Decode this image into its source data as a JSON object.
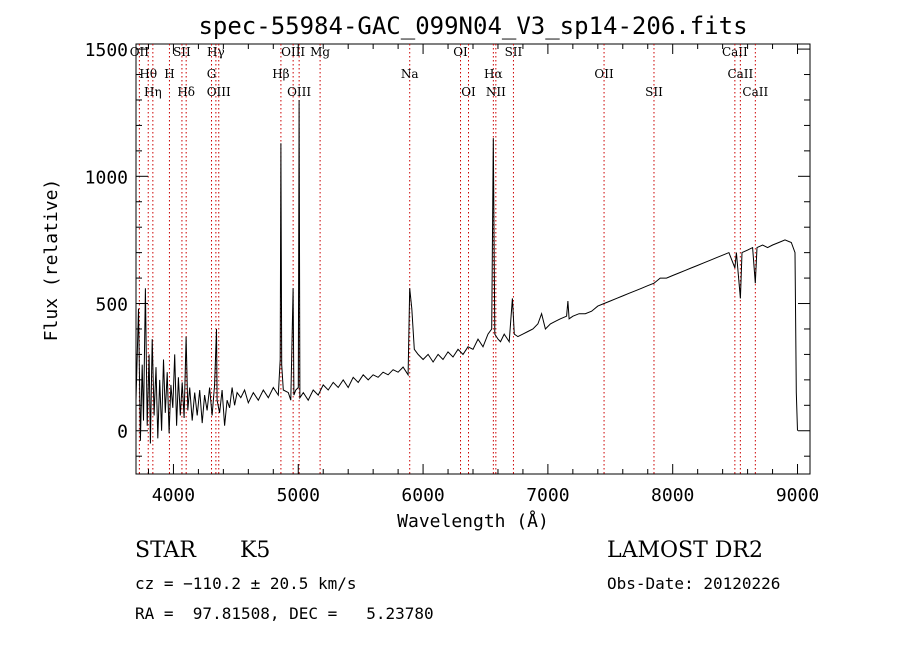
{
  "chart_data": {
    "type": "line",
    "title": "spec-55984-GAC_099N04_V3_sp14-206.fits",
    "xlabel": "Wavelength (Å)",
    "ylabel": "Flux (relative)",
    "xlim": [
      3700,
      9100
    ],
    "ylim": [
      -170,
      1520
    ],
    "xticks": [
      4000,
      5000,
      6000,
      7000,
      8000,
      9000
    ],
    "yticks": [
      0,
      500,
      1000,
      1500
    ],
    "series": [
      {
        "points": [
          [
            3700,
            120
          ],
          [
            3720,
            480
          ],
          [
            3735,
            -40
          ],
          [
            3750,
            260
          ],
          [
            3760,
            40
          ],
          [
            3775,
            560
          ],
          [
            3790,
            20
          ],
          [
            3805,
            300
          ],
          [
            3815,
            -50
          ],
          [
            3830,
            360
          ],
          [
            3845,
            60
          ],
          [
            3860,
            250
          ],
          [
            3875,
            -30
          ],
          [
            3890,
            200
          ],
          [
            3905,
            0
          ],
          [
            3920,
            280
          ],
          [
            3935,
            70
          ],
          [
            3950,
            230
          ],
          [
            3965,
            -10
          ],
          [
            3980,
            180
          ],
          [
            3995,
            90
          ],
          [
            4010,
            300
          ],
          [
            4025,
            20
          ],
          [
            4040,
            210
          ],
          [
            4055,
            60
          ],
          [
            4070,
            190
          ],
          [
            4085,
            50
          ],
          [
            4101,
            370
          ],
          [
            4115,
            80
          ],
          [
            4130,
            170
          ],
          [
            4150,
            40
          ],
          [
            4170,
            150
          ],
          [
            4190,
            60
          ],
          [
            4210,
            160
          ],
          [
            4230,
            30
          ],
          [
            4250,
            140
          ],
          [
            4270,
            80
          ],
          [
            4290,
            170
          ],
          [
            4310,
            60
          ],
          [
            4330,
            180
          ],
          [
            4345,
            400
          ],
          [
            4350,
            120
          ],
          [
            4370,
            70
          ],
          [
            4390,
            160
          ],
          [
            4410,
            20
          ],
          [
            4430,
            120
          ],
          [
            4450,
            90
          ],
          [
            4470,
            170
          ],
          [
            4490,
            100
          ],
          [
            4510,
            150
          ],
          [
            4540,
            130
          ],
          [
            4570,
            160
          ],
          [
            4600,
            110
          ],
          [
            4640,
            150
          ],
          [
            4680,
            120
          ],
          [
            4720,
            160
          ],
          [
            4760,
            130
          ],
          [
            4800,
            170
          ],
          [
            4840,
            140
          ],
          [
            4855,
            280
          ],
          [
            4861,
            1130
          ],
          [
            4867,
            260
          ],
          [
            4880,
            160
          ],
          [
            4920,
            150
          ],
          [
            4940,
            120
          ],
          [
            4959,
            560
          ],
          [
            4965,
            140
          ],
          [
            4980,
            160
          ],
          [
            5000,
            170
          ],
          [
            5007,
            1300
          ],
          [
            5013,
            130
          ],
          [
            5040,
            150
          ],
          [
            5080,
            120
          ],
          [
            5120,
            160
          ],
          [
            5160,
            140
          ],
          [
            5200,
            180
          ],
          [
            5240,
            160
          ],
          [
            5280,
            190
          ],
          [
            5320,
            170
          ],
          [
            5360,
            200
          ],
          [
            5400,
            170
          ],
          [
            5440,
            210
          ],
          [
            5480,
            190
          ],
          [
            5520,
            220
          ],
          [
            5560,
            200
          ],
          [
            5600,
            220
          ],
          [
            5640,
            210
          ],
          [
            5680,
            230
          ],
          [
            5720,
            220
          ],
          [
            5760,
            240
          ],
          [
            5800,
            230
          ],
          [
            5840,
            250
          ],
          [
            5880,
            220
          ],
          [
            5893,
            560
          ],
          [
            5910,
            480
          ],
          [
            5930,
            320
          ],
          [
            5960,
            300
          ],
          [
            6000,
            280
          ],
          [
            6040,
            300
          ],
          [
            6080,
            270
          ],
          [
            6120,
            300
          ],
          [
            6160,
            280
          ],
          [
            6200,
            310
          ],
          [
            6240,
            290
          ],
          [
            6280,
            320
          ],
          [
            6320,
            300
          ],
          [
            6360,
            330
          ],
          [
            6400,
            320
          ],
          [
            6440,
            360
          ],
          [
            6480,
            330
          ],
          [
            6520,
            380
          ],
          [
            6550,
            400
          ],
          [
            6563,
            1150
          ],
          [
            6575,
            380
          ],
          [
            6600,
            360
          ],
          [
            6620,
            350
          ],
          [
            6650,
            380
          ],
          [
            6690,
            350
          ],
          [
            6716,
            520
          ],
          [
            6731,
            380
          ],
          [
            6760,
            370
          ],
          [
            6800,
            380
          ],
          [
            6840,
            390
          ],
          [
            6880,
            400
          ],
          [
            6920,
            420
          ],
          [
            6950,
            460
          ],
          [
            6980,
            400
          ],
          [
            7020,
            420
          ],
          [
            7060,
            430
          ],
          [
            7100,
            440
          ],
          [
            7150,
            450
          ],
          [
            7160,
            510
          ],
          [
            7170,
            440
          ],
          [
            7200,
            450
          ],
          [
            7250,
            460
          ],
          [
            7300,
            460
          ],
          [
            7350,
            470
          ],
          [
            7400,
            490
          ],
          [
            7450,
            500
          ],
          [
            7500,
            510
          ],
          [
            7550,
            520
          ],
          [
            7600,
            530
          ],
          [
            7650,
            540
          ],
          [
            7700,
            550
          ],
          [
            7750,
            560
          ],
          [
            7800,
            570
          ],
          [
            7850,
            580
          ],
          [
            7900,
            600
          ],
          [
            7950,
            600
          ],
          [
            8000,
            610
          ],
          [
            8050,
            620
          ],
          [
            8100,
            630
          ],
          [
            8150,
            640
          ],
          [
            8200,
            650
          ],
          [
            8250,
            660
          ],
          [
            8300,
            670
          ],
          [
            8350,
            680
          ],
          [
            8400,
            690
          ],
          [
            8450,
            700
          ],
          [
            8498,
            640
          ],
          [
            8510,
            700
          ],
          [
            8542,
            520
          ],
          [
            8555,
            700
          ],
          [
            8600,
            710
          ],
          [
            8640,
            720
          ],
          [
            8662,
            580
          ],
          [
            8675,
            720
          ],
          [
            8720,
            730
          ],
          [
            8760,
            720
          ],
          [
            8800,
            730
          ],
          [
            8850,
            740
          ],
          [
            8900,
            750
          ],
          [
            8950,
            740
          ],
          [
            8980,
            700
          ],
          [
            8990,
            150
          ],
          [
            9000,
            0
          ]
        ]
      }
    ],
    "lines": [
      {
        "name": "OII",
        "x": 3727
      },
      {
        "name": "Hθ",
        "x": 3798
      },
      {
        "name": "Hη",
        "x": 3835
      },
      {
        "name": "SII",
        "x": 4068
      },
      {
        "name": "H",
        "x": 3968
      },
      {
        "name": "Hδ",
        "x": 4102
      },
      {
        "name": "Hγ",
        "x": 4340
      },
      {
        "name": "G",
        "x": 4305
      },
      {
        "name": "OIII",
        "x": 4363
      },
      {
        "name": "OIII",
        "x": 4959
      },
      {
        "name": "Hβ",
        "x": 4861
      },
      {
        "name": "OIII",
        "x": 5007
      },
      {
        "name": "Mg",
        "x": 5175
      },
      {
        "name": "Na",
        "x": 5893
      },
      {
        "name": "OI",
        "x": 6364
      },
      {
        "name": "OI",
        "x": 6300
      },
      {
        "name": "Hα",
        "x": 6563
      },
      {
        "name": "NII",
        "x": 6583
      },
      {
        "name": "SII",
        "x": 6724
      },
      {
        "name": "OII",
        "x": 7450
      },
      {
        "name": "SII",
        "x": 7850
      },
      {
        "name": "CaII",
        "x": 8498
      },
      {
        "name": "CaII",
        "x": 8542
      },
      {
        "name": "CaII",
        "x": 8662
      }
    ],
    "grid": false,
    "line_color": "#000000",
    "marker_color": "#cc0000"
  },
  "info": {
    "class": "STAR",
    "subclass": "K5",
    "survey": "LAMOST DR2",
    "cz": "cz = −110.2 ± 20.5 km/s",
    "obs_date": "Obs-Date: 20120226",
    "coords": "RA =  97.81508, DEC =   5.23780"
  }
}
